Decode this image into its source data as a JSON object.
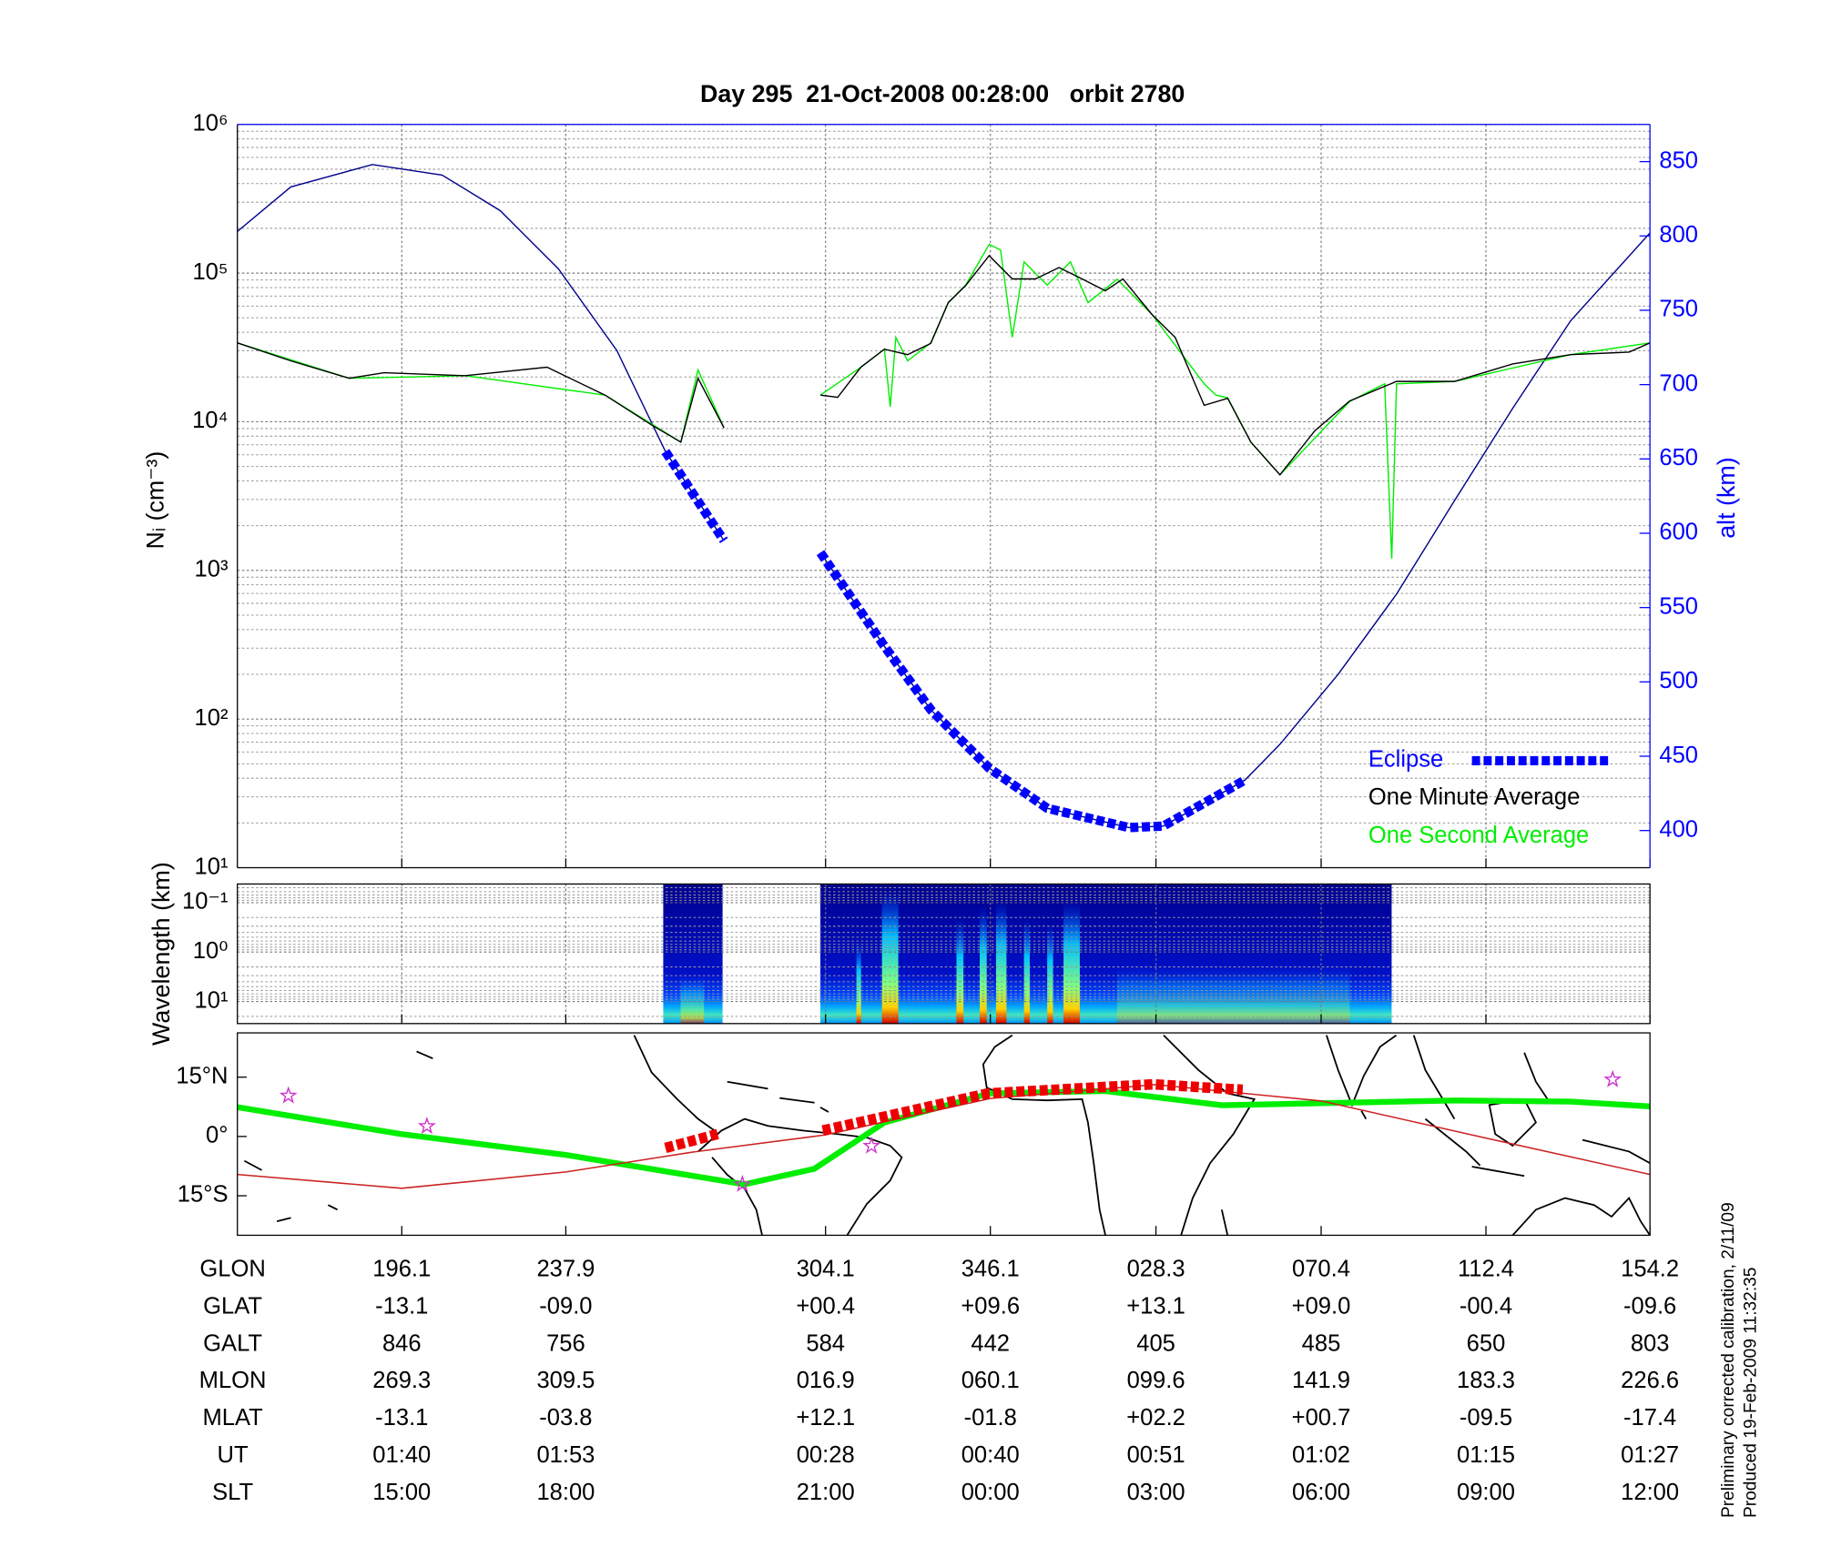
{
  "chart_data": [
    {
      "type": "line",
      "title": "Day 295  21-Oct-2008 00:28:00   orbit 2780",
      "ylabel": "Nᵢ (cm⁻³)",
      "y2label": "alt (km)",
      "xlabel": "GLON",
      "ylog": true,
      "ylim": [
        10,
        1000000
      ],
      "yticks": [
        {
          "value": 10,
          "label": "10¹"
        },
        {
          "value": 100,
          "label": "10²"
        },
        {
          "value": 1000,
          "label": "10³"
        },
        {
          "value": 10000,
          "label": "10⁴"
        },
        {
          "value": 100000,
          "label": "10⁵"
        },
        {
          "value": 1000000,
          "label": "10⁶"
        }
      ],
      "y2lim": [
        375,
        875
      ],
      "y2ticks": [
        400,
        450,
        500,
        550,
        600,
        650,
        700,
        750,
        800,
        850
      ],
      "xlim": [
        154.2,
        514.2
      ],
      "xticks": [
        196.1,
        237.9,
        304.1,
        346.1,
        {
          "value": 388.3,
          "label": "028.3"
        },
        {
          "value": 430.4,
          "label": "070.4"
        },
        {
          "value": 472.4,
          "label": "112.4"
        },
        {
          "value": 514.2,
          "label": "154.2"
        }
      ],
      "grid": true,
      "legend": "lower right",
      "series": [
        {
          "name": "Eclipse",
          "color": "#0000ff",
          "line_style": "dash",
          "axis": "y2",
          "x": [
            263.3,
            270.7,
            278.2,
            290,
            302.8,
            319.1,
            331.0,
            345.8,
            360.6,
            381.4,
            390.2,
            411.0
          ],
          "values": [
            655,
            625,
            595,
            null,
            587,
            524,
            481,
            442,
            415,
            402,
            403,
            434
          ]
        },
        {
          "name": "One Minute Average",
          "color": "#000000",
          "x": [
            154.2,
            167.8,
            182.7,
            191.6,
            212.3,
            233.1,
            247.9,
            259.8,
            267.2,
            271.6,
            278.2,
            290,
            302.8,
            307.2,
            313.1,
            319.1,
            325.0,
            330.9,
            335.4,
            339.8,
            345.8,
            351.7,
            357.6,
            363.6,
            369.5,
            375.4,
            379.9,
            387.3,
            393.2,
            400.6,
            406.6,
            412.5,
            419.9,
            428.8,
            437.7,
            449.6,
            464.4,
            479.2,
            494.0,
            508.9,
            514.2
          ],
          "values": [
            33900,
            25700,
            19600,
            21400,
            20400,
            23300,
            15100,
            9500,
            7300,
            19600,
            9100,
            null,
            15100,
            14600,
            23300,
            30800,
            28300,
            33700,
            63400,
            82500,
            131000,
            91400,
            91400,
            109000,
            91400,
            76000,
            91400,
            52600,
            36900,
            12900,
            14400,
            7300,
            4400,
            8700,
            13800,
            18700,
            18700,
            24500,
            28300,
            29400,
            33900
          ]
        },
        {
          "name": "One Second Average",
          "color": "#00ee00",
          "x": [
            154.2,
            182.7,
            212.3,
            247.9,
            267.2,
            271.6,
            278.2,
            290,
            302.8,
            313.1,
            319.1,
            320.6,
            322.0,
            325.0,
            330.9,
            335.4,
            339.8,
            345.8,
            348.7,
            351.7,
            354.7,
            360.6,
            366.5,
            371.0,
            378.4,
            387.3,
            400.6,
            403.6,
            406.6,
            412.5,
            419.9,
            437.7,
            446.6,
            448.4,
            449.6,
            464.4,
            494.0,
            514.2
          ],
          "values": [
            33900,
            19600,
            20400,
            15100,
            7300,
            22300,
            9100,
            null,
            15100,
            23300,
            30800,
            12600,
            37000,
            25700,
            33900,
            63300,
            83000,
            156000,
            143000,
            37000,
            119000,
            83000,
            119000,
            63300,
            91000,
            52700,
            18000,
            15100,
            14500,
            7300,
            4400,
            13700,
            18000,
            1200,
            18000,
            18700,
            28300,
            33900
          ]
        },
        {
          "color": "#00008b",
          "axis": "y2",
          "x": [
            154.2,
            167.8,
            188.6,
            206.4,
            221.2,
            236.0,
            250.9,
            263.3,
            278.2,
            290,
            302.8,
            319.1,
            331.0,
            345.8,
            360.6,
            381.4,
            390.2,
            411.0,
            419.9,
            434.7,
            449.6,
            464.4,
            479.2,
            494.0,
            514.2
          ],
          "values": [
            803,
            833,
            848,
            841,
            817,
            778,
            723,
            655,
            595,
            null,
            587,
            524,
            481,
            442,
            415,
            402,
            403,
            434,
            458,
            505,
            559,
            622,
            684,
            743,
            802
          ]
        }
      ],
      "table": [
        {
          "label": "GLAT",
          "cells": [
            "-13.1",
            "-09.0",
            "+00.4",
            "+09.6",
            "+13.1",
            "+09.0",
            "-00.4",
            "-09.6"
          ]
        },
        {
          "label": "GALT",
          "cells": [
            "846",
            "756",
            "584",
            "442",
            "405",
            "485",
            "650",
            "803"
          ]
        },
        {
          "label": "MLON",
          "cells": [
            "269.3",
            "309.5",
            "016.9",
            "060.1",
            "099.6",
            "141.9",
            "183.3",
            "226.6"
          ]
        },
        {
          "label": "MLAT",
          "cells": [
            "-13.1",
            "-03.8",
            "+12.1",
            "-01.8",
            "+02.2",
            "+00.7",
            "-09.5",
            "-17.4"
          ]
        },
        {
          "label": "UT",
          "cells": [
            "01:40",
            "01:53",
            "00:28",
            "00:40",
            "00:51",
            "01:02",
            "01:15",
            "01:27"
          ]
        },
        {
          "label": "SLT",
          "cells": [
            "15:00",
            "18:00",
            "21:00",
            "00:00",
            "03:00",
            "06:00",
            "09:00",
            "12:00"
          ]
        }
      ]
    },
    {
      "type": "spectrogram",
      "ylabel": "Wavelength (km)",
      "ylog": true,
      "ylim": [
        28,
        0.042
      ],
      "yticks": [
        {
          "value": 0.1,
          "label": "10⁻¹"
        },
        {
          "value": 1,
          "label": "10⁰"
        },
        {
          "value": 10,
          "label": "10¹"
        }
      ],
      "xlim": [
        154.2,
        514.2
      ],
      "grid": true
    },
    {
      "type": "map",
      "ylim": [
        -25,
        26.2
      ],
      "yticks": [
        {
          "value": -15,
          "label": "15°S"
        },
        {
          "value": 0,
          "label": "0°"
        },
        {
          "value": 15,
          "label": "15°N"
        }
      ],
      "xlim": [
        154.2,
        514.2
      ],
      "series": [
        {
          "color": "#00ee00",
          "x": [
            154.2,
            196.0,
            238.1,
            283.4,
            301.2,
            319.1,
            345.8,
            375.4,
            405.1,
            434.7,
            464.4,
            494.0,
            514.2
          ],
          "values": [
            7.4,
            0.6,
            -4.7,
            -12.1,
            -8.2,
            3.5,
            10.9,
            11.5,
            7.9,
            8.5,
            9.1,
            8.8,
            7.6
          ]
        },
        {
          "color": "#cc2222",
          "x": [
            154.2,
            196.1,
            237.9,
            270,
            304.1,
            346.1,
            388.3,
            430.4,
            472.4,
            514.2
          ],
          "values": [
            -9.6,
            -13.1,
            -9.0,
            -4.0,
            0.4,
            9.6,
            13.1,
            9.0,
            -0.4,
            -9.6
          ]
        },
        {
          "color": "#ee0000",
          "line_style": "dash",
          "x": [
            263.3,
            276.6,
            290,
            303.4,
            345.5,
            387.6,
            410.4
          ],
          "values": [
            -2.9,
            0.6,
            null,
            1.5,
            10.9,
            13.2,
            11.8
          ]
        }
      ],
      "points": {
        "color": "#cc33cc",
        "x": [
          167.2,
          202.5,
          282.9,
          315.8,
          504.7
        ],
        "values": [
          10.3,
          2.6,
          -12.1,
          -2.4,
          14.4
        ]
      }
    }
  ],
  "footnotes": [
    "Preliminary corrected calibration, 2/11/09",
    "Produced 19-Feb-2009 11:32:35"
  ]
}
